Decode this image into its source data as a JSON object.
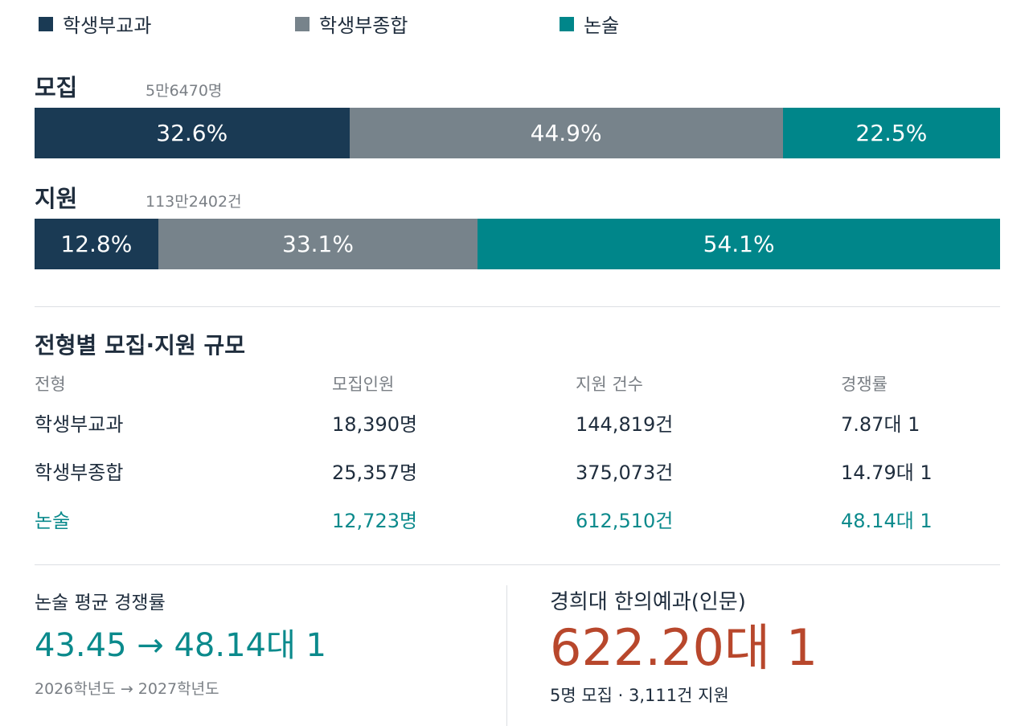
{
  "colors": {
    "gyogwa": "#1a3a54",
    "jonghap": "#77838b",
    "nonsul": "#00868a",
    "highlight_text": "#0b8a8c",
    "accent_red": "#b8472c"
  },
  "legend": [
    {
      "label": "학생부교과",
      "color": "#1a3a54"
    },
    {
      "label": "학생부종합",
      "color": "#77838b"
    },
    {
      "label": "논술",
      "color": "#00868a"
    }
  ],
  "chart_data": [
    {
      "type": "bar",
      "stacked": true,
      "orientation": "horizontal",
      "title": "모집",
      "subtitle": "5만6470명",
      "series": [
        {
          "name": "학생부교과",
          "value": 32.6,
          "label": "32.6%"
        },
        {
          "name": "학생부종합",
          "value": 44.9,
          "label": "44.9%"
        },
        {
          "name": "논술",
          "value": 22.5,
          "label": "22.5%"
        }
      ]
    },
    {
      "type": "bar",
      "stacked": true,
      "orientation": "horizontal",
      "title": "지원",
      "subtitle": "113만2402건",
      "series": [
        {
          "name": "학생부교과",
          "value": 12.8,
          "label": "12.8%"
        },
        {
          "name": "학생부종합",
          "value": 33.1,
          "label": "33.1%"
        },
        {
          "name": "논술",
          "value": 54.1,
          "label": "54.1%"
        }
      ]
    }
  ],
  "table": {
    "title": "전형별 모집·지원 규모",
    "headers": [
      "전형",
      "모집인원",
      "지원 건수",
      "경쟁률"
    ],
    "rows": [
      {
        "cells": [
          "학생부교과",
          "18,390명",
          "144,819건",
          "7.87대 1"
        ],
        "highlight": false
      },
      {
        "cells": [
          "학생부종합",
          "25,357명",
          "375,073건",
          "14.79대 1"
        ],
        "highlight": false
      },
      {
        "cells": [
          "논술",
          "12,723명",
          "612,510건",
          "48.14대 1"
        ],
        "highlight": true
      }
    ]
  },
  "summary_left": {
    "title": "논술 평균 경쟁률",
    "value": "43.45 → 48.14대 1",
    "note": "2026학년도 → 2027학년도"
  },
  "summary_right": {
    "title": "경희대 한의예과(인문)",
    "value": "622.20대 1",
    "note": "5명 모집 · 3,111건 지원"
  }
}
